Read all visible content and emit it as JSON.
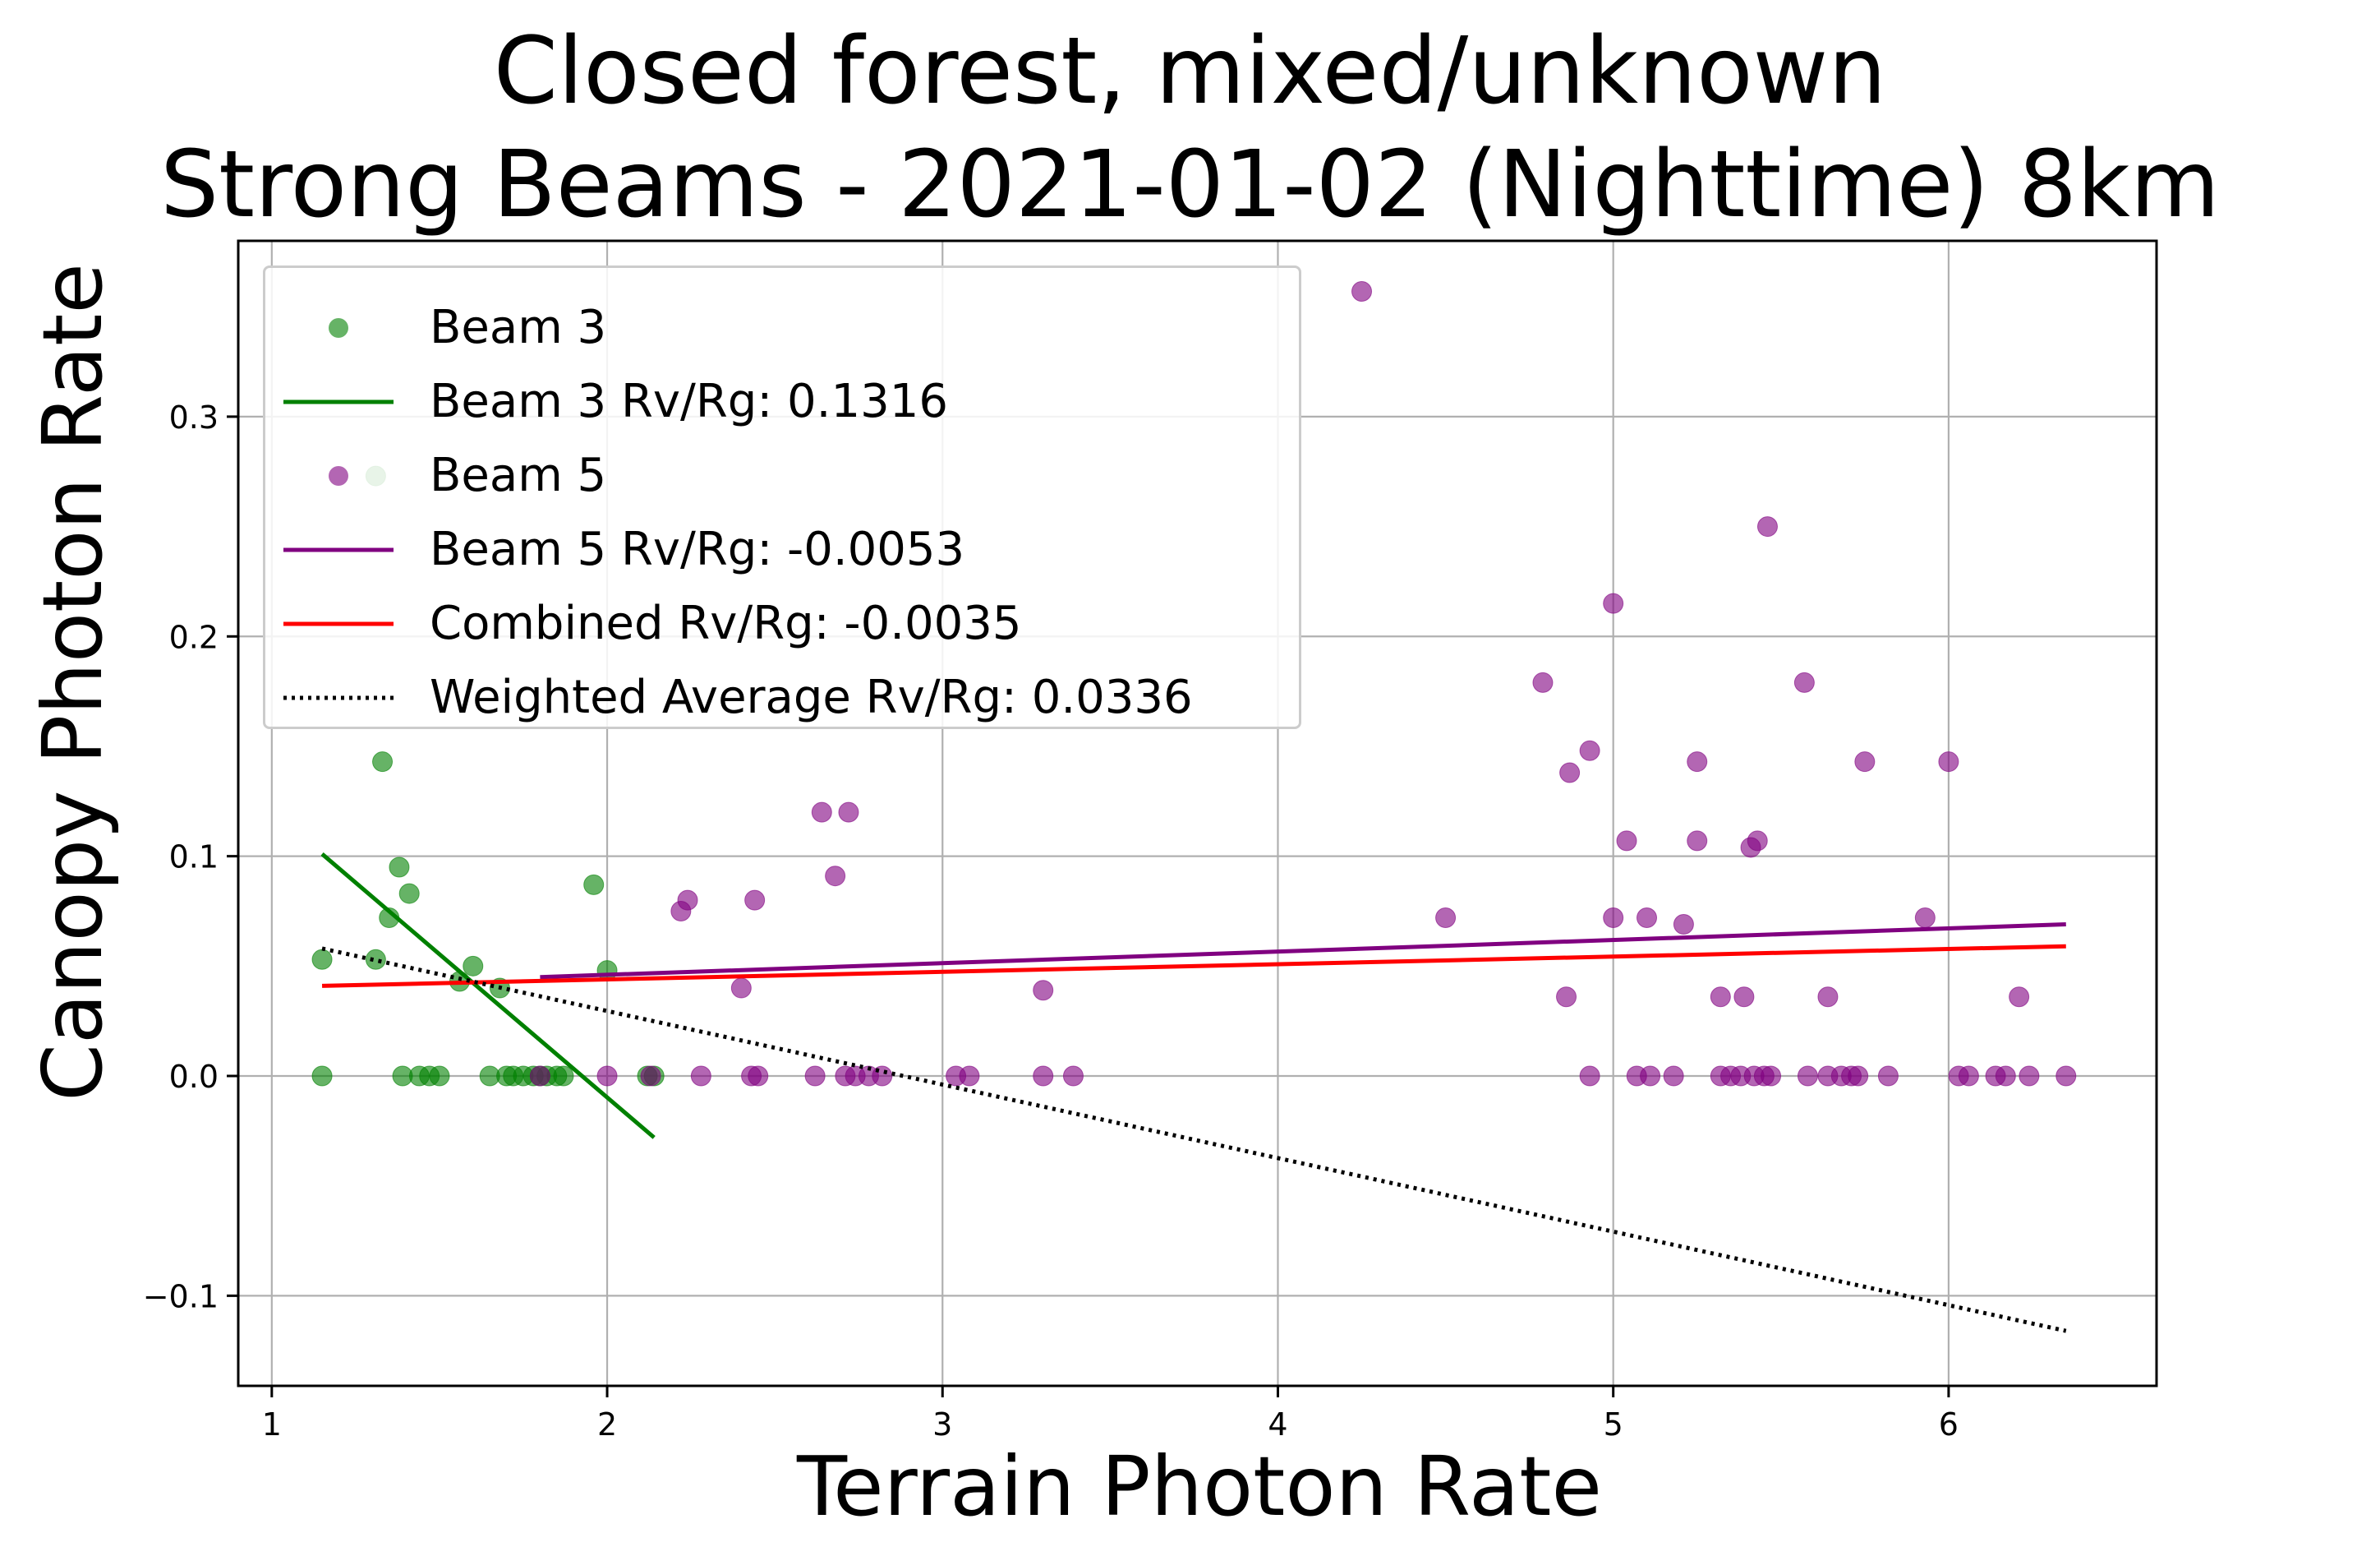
{
  "chart_data": {
    "type": "scatter",
    "title_lines": [
      "Closed forest, mixed/unknown",
      "Strong Beams - 2021-01-02 (Nighttime) 8km"
    ],
    "xlabel": "Terrain Photon Rate",
    "ylabel": "Canopy Photon Rate",
    "xlim": [
      0.9,
      6.62
    ],
    "ylim": [
      -0.141,
      0.38
    ],
    "xticks": [
      1,
      2,
      3,
      4,
      5,
      6
    ],
    "yticks": [
      -0.1,
      0.0,
      0.1,
      0.2,
      0.3
    ],
    "xtick_labels": [
      "1",
      "2",
      "3",
      "4",
      "5",
      "6"
    ],
    "ytick_labels": [
      "−0.1",
      "0.0",
      "0.1",
      "0.2",
      "0.3"
    ],
    "grid": true,
    "legend_position": "upper-left",
    "series": [
      {
        "name": "Beam 3",
        "kind": "scatter",
        "color": "#008000",
        "points": [
          [
            1.15,
            0.053
          ],
          [
            1.15,
            0.0
          ],
          [
            1.31,
            0.273
          ],
          [
            1.31,
            0.053
          ],
          [
            1.33,
            0.143
          ],
          [
            1.35,
            0.072
          ],
          [
            1.38,
            0.095
          ],
          [
            1.39,
            0.0
          ],
          [
            1.41,
            0.083
          ],
          [
            1.44,
            0.0
          ],
          [
            1.47,
            0.0
          ],
          [
            1.5,
            0.0
          ],
          [
            1.56,
            0.043
          ],
          [
            1.6,
            0.05
          ],
          [
            1.65,
            0.0
          ],
          [
            1.68,
            0.04
          ],
          [
            1.7,
            0.0
          ],
          [
            1.72,
            0.0
          ],
          [
            1.75,
            0.0
          ],
          [
            1.78,
            0.0
          ],
          [
            1.8,
            0.0
          ],
          [
            1.82,
            0.0
          ],
          [
            1.85,
            0.0
          ],
          [
            1.87,
            0.0
          ],
          [
            1.96,
            0.087
          ],
          [
            2.0,
            0.048
          ],
          [
            2.12,
            0.0
          ],
          [
            2.14,
            0.0
          ]
        ]
      },
      {
        "name": "Beam 3 Rv/Rg: 0.1316",
        "kind": "line",
        "color": "#008000",
        "points": [
          [
            1.15,
            0.101
          ],
          [
            2.14,
            -0.028
          ]
        ]
      },
      {
        "name": "Beam 5",
        "kind": "scatter",
        "color": "#800080",
        "points": [
          [
            1.8,
            0.0
          ],
          [
            2.0,
            0.0
          ],
          [
            2.13,
            0.0
          ],
          [
            2.22,
            0.075
          ],
          [
            2.24,
            0.08
          ],
          [
            2.28,
            0.0
          ],
          [
            2.4,
            0.04
          ],
          [
            2.43,
            0.0
          ],
          [
            2.44,
            0.08
          ],
          [
            2.45,
            0.0
          ],
          [
            2.62,
            0.0
          ],
          [
            2.64,
            0.12
          ],
          [
            2.68,
            0.091
          ],
          [
            2.71,
            0.0
          ],
          [
            2.72,
            0.12
          ],
          [
            2.74,
            0.0
          ],
          [
            2.78,
            0.0
          ],
          [
            2.82,
            0.0
          ],
          [
            3.04,
            0.0
          ],
          [
            3.08,
            0.0
          ],
          [
            3.3,
            0.039
          ],
          [
            3.3,
            0.0
          ],
          [
            3.39,
            0.0
          ],
          [
            4.25,
            0.357
          ],
          [
            4.5,
            0.072
          ],
          [
            4.79,
            0.179
          ],
          [
            4.86,
            0.036
          ],
          [
            4.87,
            0.138
          ],
          [
            4.93,
            0.148
          ],
          [
            4.93,
            0.0
          ],
          [
            5.0,
            0.215
          ],
          [
            5.0,
            0.072
          ],
          [
            5.04,
            0.107
          ],
          [
            5.07,
            0.0
          ],
          [
            5.1,
            0.072
          ],
          [
            5.11,
            0.0
          ],
          [
            5.18,
            0.0
          ],
          [
            5.21,
            0.069
          ],
          [
            5.25,
            0.143
          ],
          [
            5.25,
            0.107
          ],
          [
            5.32,
            0.036
          ],
          [
            5.32,
            0.0
          ],
          [
            5.35,
            0.0
          ],
          [
            5.38,
            0.0
          ],
          [
            5.39,
            0.036
          ],
          [
            5.41,
            0.104
          ],
          [
            5.42,
            0.0
          ],
          [
            5.43,
            0.107
          ],
          [
            5.45,
            0.0
          ],
          [
            5.46,
            0.25
          ],
          [
            5.47,
            0.0
          ],
          [
            5.57,
            0.179
          ],
          [
            5.58,
            0.0
          ],
          [
            5.64,
            0.036
          ],
          [
            5.64,
            0.0
          ],
          [
            5.68,
            0.0
          ],
          [
            5.71,
            0.0
          ],
          [
            5.73,
            0.0
          ],
          [
            5.75,
            0.143
          ],
          [
            5.82,
            0.0
          ],
          [
            5.93,
            0.072
          ],
          [
            6.0,
            0.143
          ],
          [
            6.03,
            0.0
          ],
          [
            6.06,
            0.0
          ],
          [
            6.14,
            0.0
          ],
          [
            6.17,
            0.0
          ],
          [
            6.21,
            0.036
          ],
          [
            6.24,
            0.0
          ],
          [
            6.35,
            0.0
          ]
        ]
      },
      {
        "name": "Beam 5 Rv/Rg: -0.0053",
        "kind": "line",
        "color": "#800080",
        "points": [
          [
            1.8,
            0.045
          ],
          [
            6.35,
            0.069
          ]
        ]
      },
      {
        "name": "Combined Rv/Rg: -0.0035",
        "kind": "line",
        "color": "#ff0000",
        "points": [
          [
            1.15,
            0.041
          ],
          [
            6.35,
            0.059
          ]
        ]
      },
      {
        "name": "Weighted Average Rv/Rg: 0.0336",
        "kind": "dotted-line",
        "color": "#000000",
        "points": [
          [
            1.15,
            0.058
          ],
          [
            6.35,
            -0.116
          ]
        ]
      }
    ],
    "legend": [
      {
        "label": "Beam 3",
        "marker": "circle",
        "color": "#008000"
      },
      {
        "label": "Beam 3 Rv/Rg: 0.1316",
        "marker": "line",
        "color": "#008000"
      },
      {
        "label": "Beam 5",
        "marker": "circle",
        "color": "#800080"
      },
      {
        "label": "Beam 5 Rv/Rg: -0.0053",
        "marker": "line",
        "color": "#800080"
      },
      {
        "label": "Combined Rv/Rg: -0.0035",
        "marker": "line",
        "color": "#ff0000"
      },
      {
        "label": "Weighted Average Rv/Rg: 0.0336",
        "marker": "dotted",
        "color": "#000000"
      }
    ]
  }
}
